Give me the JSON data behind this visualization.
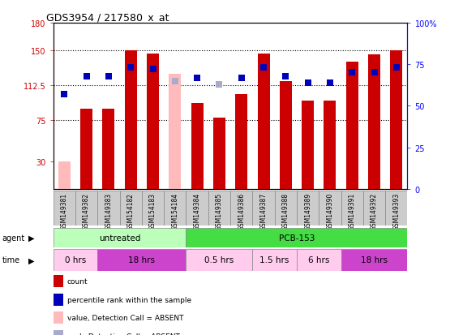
{
  "title": "GDS3954 / 217580_x_at",
  "samples": [
    "GSM149381",
    "GSM149382",
    "GSM149383",
    "GSM154182",
    "GSM154183",
    "GSM154184",
    "GSM149384",
    "GSM149385",
    "GSM149386",
    "GSM149387",
    "GSM149388",
    "GSM149389",
    "GSM149390",
    "GSM149391",
    "GSM149392",
    "GSM149393"
  ],
  "bar_values": [
    30,
    87,
    87,
    150,
    147,
    125,
    93,
    77,
    103,
    147,
    117,
    96,
    96,
    138,
    146,
    150
  ],
  "bar_absent": [
    true,
    false,
    false,
    false,
    false,
    true,
    false,
    false,
    false,
    false,
    false,
    false,
    false,
    false,
    false,
    false
  ],
  "rank_values": [
    57,
    68,
    68,
    73,
    72,
    65,
    67,
    63,
    67,
    73,
    68,
    64,
    64,
    70,
    70,
    73
  ],
  "rank_absent": [
    false,
    false,
    false,
    false,
    false,
    true,
    false,
    true,
    false,
    false,
    false,
    false,
    false,
    false,
    false,
    false
  ],
  "ylim_left": [
    0,
    180
  ],
  "ylim_right": [
    0,
    100
  ],
  "yticks_left": [
    30,
    75,
    112.5,
    150,
    180
  ],
  "yticks_right": [
    0,
    25,
    50,
    75,
    100
  ],
  "ytick_labels_left": [
    "30",
    "75",
    "112.5",
    "150",
    "180"
  ],
  "ytick_labels_right": [
    "0",
    "25",
    "50",
    "75",
    "100%"
  ],
  "hlines": [
    75,
    112.5,
    150
  ],
  "color_bar_present": "#cc0000",
  "color_bar_absent": "#ffbbbb",
  "color_rank_present": "#0000bb",
  "color_rank_absent": "#aaaacc",
  "agent_groups": [
    {
      "label": "untreated",
      "start": 0,
      "end": 6,
      "color": "#bbffbb"
    },
    {
      "label": "PCB-153",
      "start": 6,
      "end": 16,
      "color": "#44dd44"
    }
  ],
  "time_groups": [
    {
      "label": "0 hrs",
      "start": 0,
      "end": 2,
      "color": "#ffccee"
    },
    {
      "label": "18 hrs",
      "start": 2,
      "end": 6,
      "color": "#cc44cc"
    },
    {
      "label": "0.5 hrs",
      "start": 6,
      "end": 9,
      "color": "#ffccee"
    },
    {
      "label": "1.5 hrs",
      "start": 9,
      "end": 11,
      "color": "#ffccee"
    },
    {
      "label": "6 hrs",
      "start": 11,
      "end": 13,
      "color": "#ffccee"
    },
    {
      "label": "18 hrs",
      "start": 13,
      "end": 16,
      "color": "#cc44cc"
    }
  ],
  "legend_items": [
    {
      "label": "count",
      "color": "#cc0000",
      "marker": "s"
    },
    {
      "label": "percentile rank within the sample",
      "color": "#0000bb",
      "marker": "s"
    },
    {
      "label": "value, Detection Call = ABSENT",
      "color": "#ffbbbb",
      "marker": "s"
    },
    {
      "label": "rank, Detection Call = ABSENT",
      "color": "#aaaacc",
      "marker": "s"
    }
  ]
}
